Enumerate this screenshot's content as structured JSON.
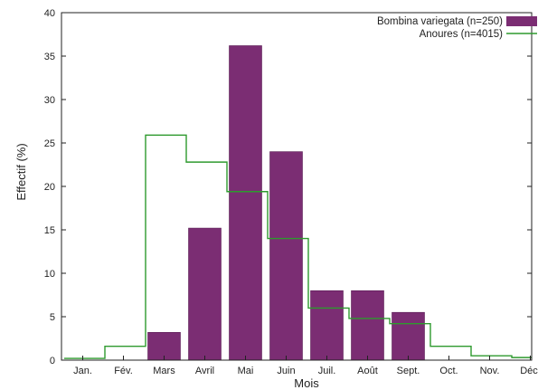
{
  "chart_data": {
    "type": "bar",
    "title": "",
    "xlabel": "Mois",
    "ylabel": "Effectif (%)",
    "ylim": [
      0,
      40
    ],
    "yticks": [
      0,
      5,
      10,
      15,
      20,
      25,
      30,
      35,
      40
    ],
    "categories": [
      "Jan.",
      "Fév.",
      "Mars",
      "Avril",
      "Mai",
      "Juin",
      "Juil.",
      "Août",
      "Sept.",
      "Oct.",
      "Nov.",
      "Déc."
    ],
    "series": [
      {
        "name": "Bombina variegata (n=250)",
        "kind": "bar",
        "color": "#7b2d73",
        "values": [
          0,
          0,
          3.2,
          15.2,
          36.2,
          24.0,
          8.0,
          8.0,
          5.5,
          0,
          0,
          0
        ]
      },
      {
        "name": "Anoures (n=4015)",
        "kind": "step",
        "color": "#2e9a2e",
        "values": [
          0.2,
          1.6,
          25.9,
          22.8,
          19.4,
          14.0,
          6.0,
          4.8,
          4.2,
          1.6,
          0.5,
          0.3
        ]
      }
    ],
    "legend_position": "top-right",
    "grid": false
  }
}
